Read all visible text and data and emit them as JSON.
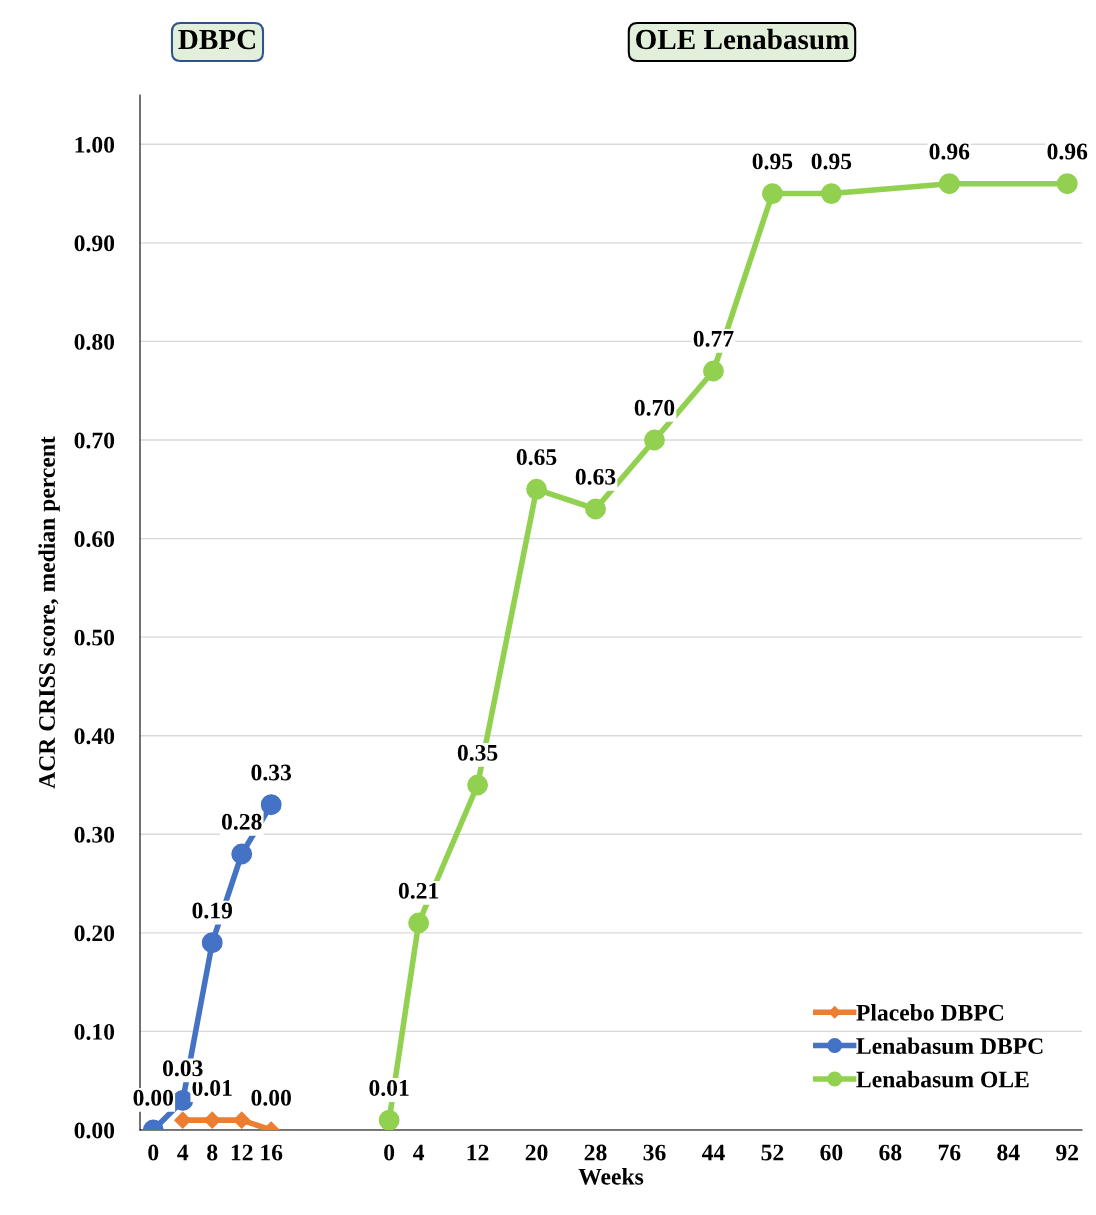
{
  "chart_data": {
    "type": "line",
    "xlabel": "Weeks",
    "ylabel": "ACR CRISS score, median percent",
    "annotations": [
      "DBPC",
      "OLE Lenabasum"
    ],
    "categories": [
      "0",
      "4",
      "8",
      "12",
      "16",
      null,
      null,
      null,
      "0",
      "4",
      null,
      "12",
      null,
      "20",
      null,
      "28",
      null,
      "36",
      null,
      "44",
      null,
      "52",
      null,
      "60",
      null,
      "68",
      null,
      "76",
      null,
      "84",
      null,
      "92"
    ],
    "series": [
      {
        "name": "Placebo DBPC",
        "color": "#ed7d31",
        "marker": "diamond",
        "values": [
          null,
          0.01,
          0.01,
          0.01,
          0.0,
          null,
          null,
          null,
          null,
          null,
          null,
          null,
          null,
          null,
          null,
          null,
          null,
          null,
          null,
          null,
          null,
          null,
          null,
          null,
          null,
          null,
          null,
          null,
          null,
          null,
          null,
          null
        ],
        "value_labels": [
          null,
          null,
          "0.01",
          null,
          "0.00",
          null,
          null,
          null,
          null,
          null,
          null,
          null,
          null,
          null,
          null,
          null,
          null,
          null,
          null,
          null,
          null,
          null,
          null,
          null,
          null,
          null,
          null,
          null,
          null,
          null,
          null,
          null
        ]
      },
      {
        "name": "Lenabasum DBPC",
        "color": "#4472c4",
        "marker": "circle",
        "values": [
          0.0,
          0.03,
          0.19,
          0.28,
          0.33,
          null,
          null,
          null,
          null,
          null,
          null,
          null,
          null,
          null,
          null,
          null,
          null,
          null,
          null,
          null,
          null,
          null,
          null,
          null,
          null,
          null,
          null,
          null,
          null,
          null,
          null,
          null
        ],
        "value_labels": [
          "0.00",
          "0.03",
          "0.19",
          "0.28",
          "0.33",
          null,
          null,
          null,
          null,
          null,
          null,
          null,
          null,
          null,
          null,
          null,
          null,
          null,
          null,
          null,
          null,
          null,
          null,
          null,
          null,
          null,
          null,
          null,
          null,
          null,
          null,
          null
        ]
      },
      {
        "name": "Lenabasum OLE",
        "color": "#92d050",
        "marker": "circle",
        "values": [
          null,
          null,
          null,
          null,
          null,
          null,
          null,
          null,
          0.01,
          0.21,
          null,
          0.35,
          null,
          0.65,
          null,
          0.63,
          null,
          0.7,
          null,
          0.77,
          null,
          0.95,
          null,
          0.95,
          null,
          null,
          null,
          0.96,
          null,
          null,
          null,
          0.96
        ],
        "value_labels": [
          null,
          null,
          null,
          null,
          null,
          null,
          null,
          null,
          "0.01",
          "0.21",
          null,
          "0.35",
          null,
          "0.65",
          null,
          "0.63",
          null,
          "0.70",
          null,
          "0.77",
          null,
          "0.95",
          null,
          "0.95",
          null,
          null,
          null,
          "0.96",
          null,
          null,
          null,
          "0.96"
        ]
      }
    ],
    "ylim": [
      0,
      1.05
    ],
    "yticks": [
      {
        "value": 0,
        "label": "0.00"
      },
      {
        "value": 0.1,
        "label": "0.10"
      },
      {
        "value": 0.2,
        "label": "0.20"
      },
      {
        "value": 0.3,
        "label": "0.30"
      },
      {
        "value": 0.4,
        "label": "0.40"
      },
      {
        "value": 0.5,
        "label": "0.50"
      },
      {
        "value": 0.6,
        "label": "0.60"
      },
      {
        "value": 0.7,
        "label": "0.70"
      },
      {
        "value": 0.8,
        "label": "0.80"
      },
      {
        "value": 0.9,
        "label": "0.90"
      },
      {
        "value": 1.0,
        "label": "1.00"
      }
    ],
    "grid": "y",
    "legend": "bottom right",
    "line_style": "solid"
  }
}
